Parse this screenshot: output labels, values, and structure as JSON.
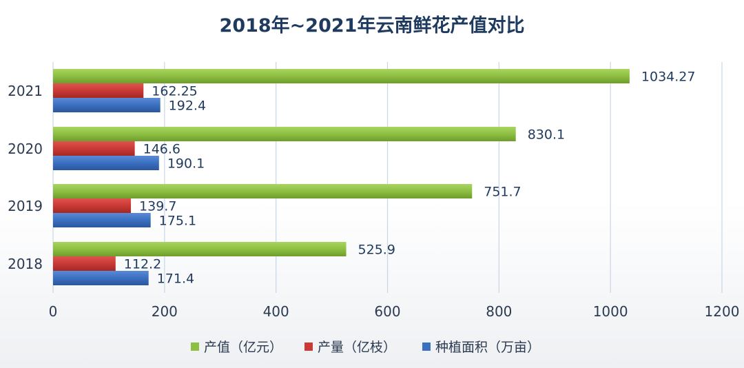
{
  "chart_data": {
    "type": "bar",
    "orientation": "horizontal",
    "title": "2018年~2021年云南鲜花产值对比",
    "categories": [
      "2021",
      "2020",
      "2019",
      "2018"
    ],
    "series": [
      {
        "name": "产值（亿元）",
        "color": "#8dbf42",
        "values": [
          1034.27,
          830.1,
          751.7,
          525.9
        ],
        "labels": [
          "1034.27",
          "830.1",
          "751.7",
          "525.9"
        ]
      },
      {
        "name": "产量（亿枝）",
        "color": "#c93a36",
        "values": [
          162.25,
          146.6,
          139.7,
          112.2
        ],
        "labels": [
          "162.25",
          "146.6",
          "139.7",
          "112.2"
        ]
      },
      {
        "name": "种植面积（万亩）",
        "color": "#3b6fc0",
        "values": [
          192.4,
          190.1,
          175.1,
          171.4
        ],
        "labels": [
          "192.4",
          "190.1",
          "175.1",
          "171.4"
        ]
      }
    ],
    "xlim": [
      0,
      1200
    ],
    "xticks": [
      "0",
      "200",
      "400",
      "600",
      "800",
      "1000",
      "1200"
    ],
    "grid": true,
    "legend": "bottom"
  }
}
